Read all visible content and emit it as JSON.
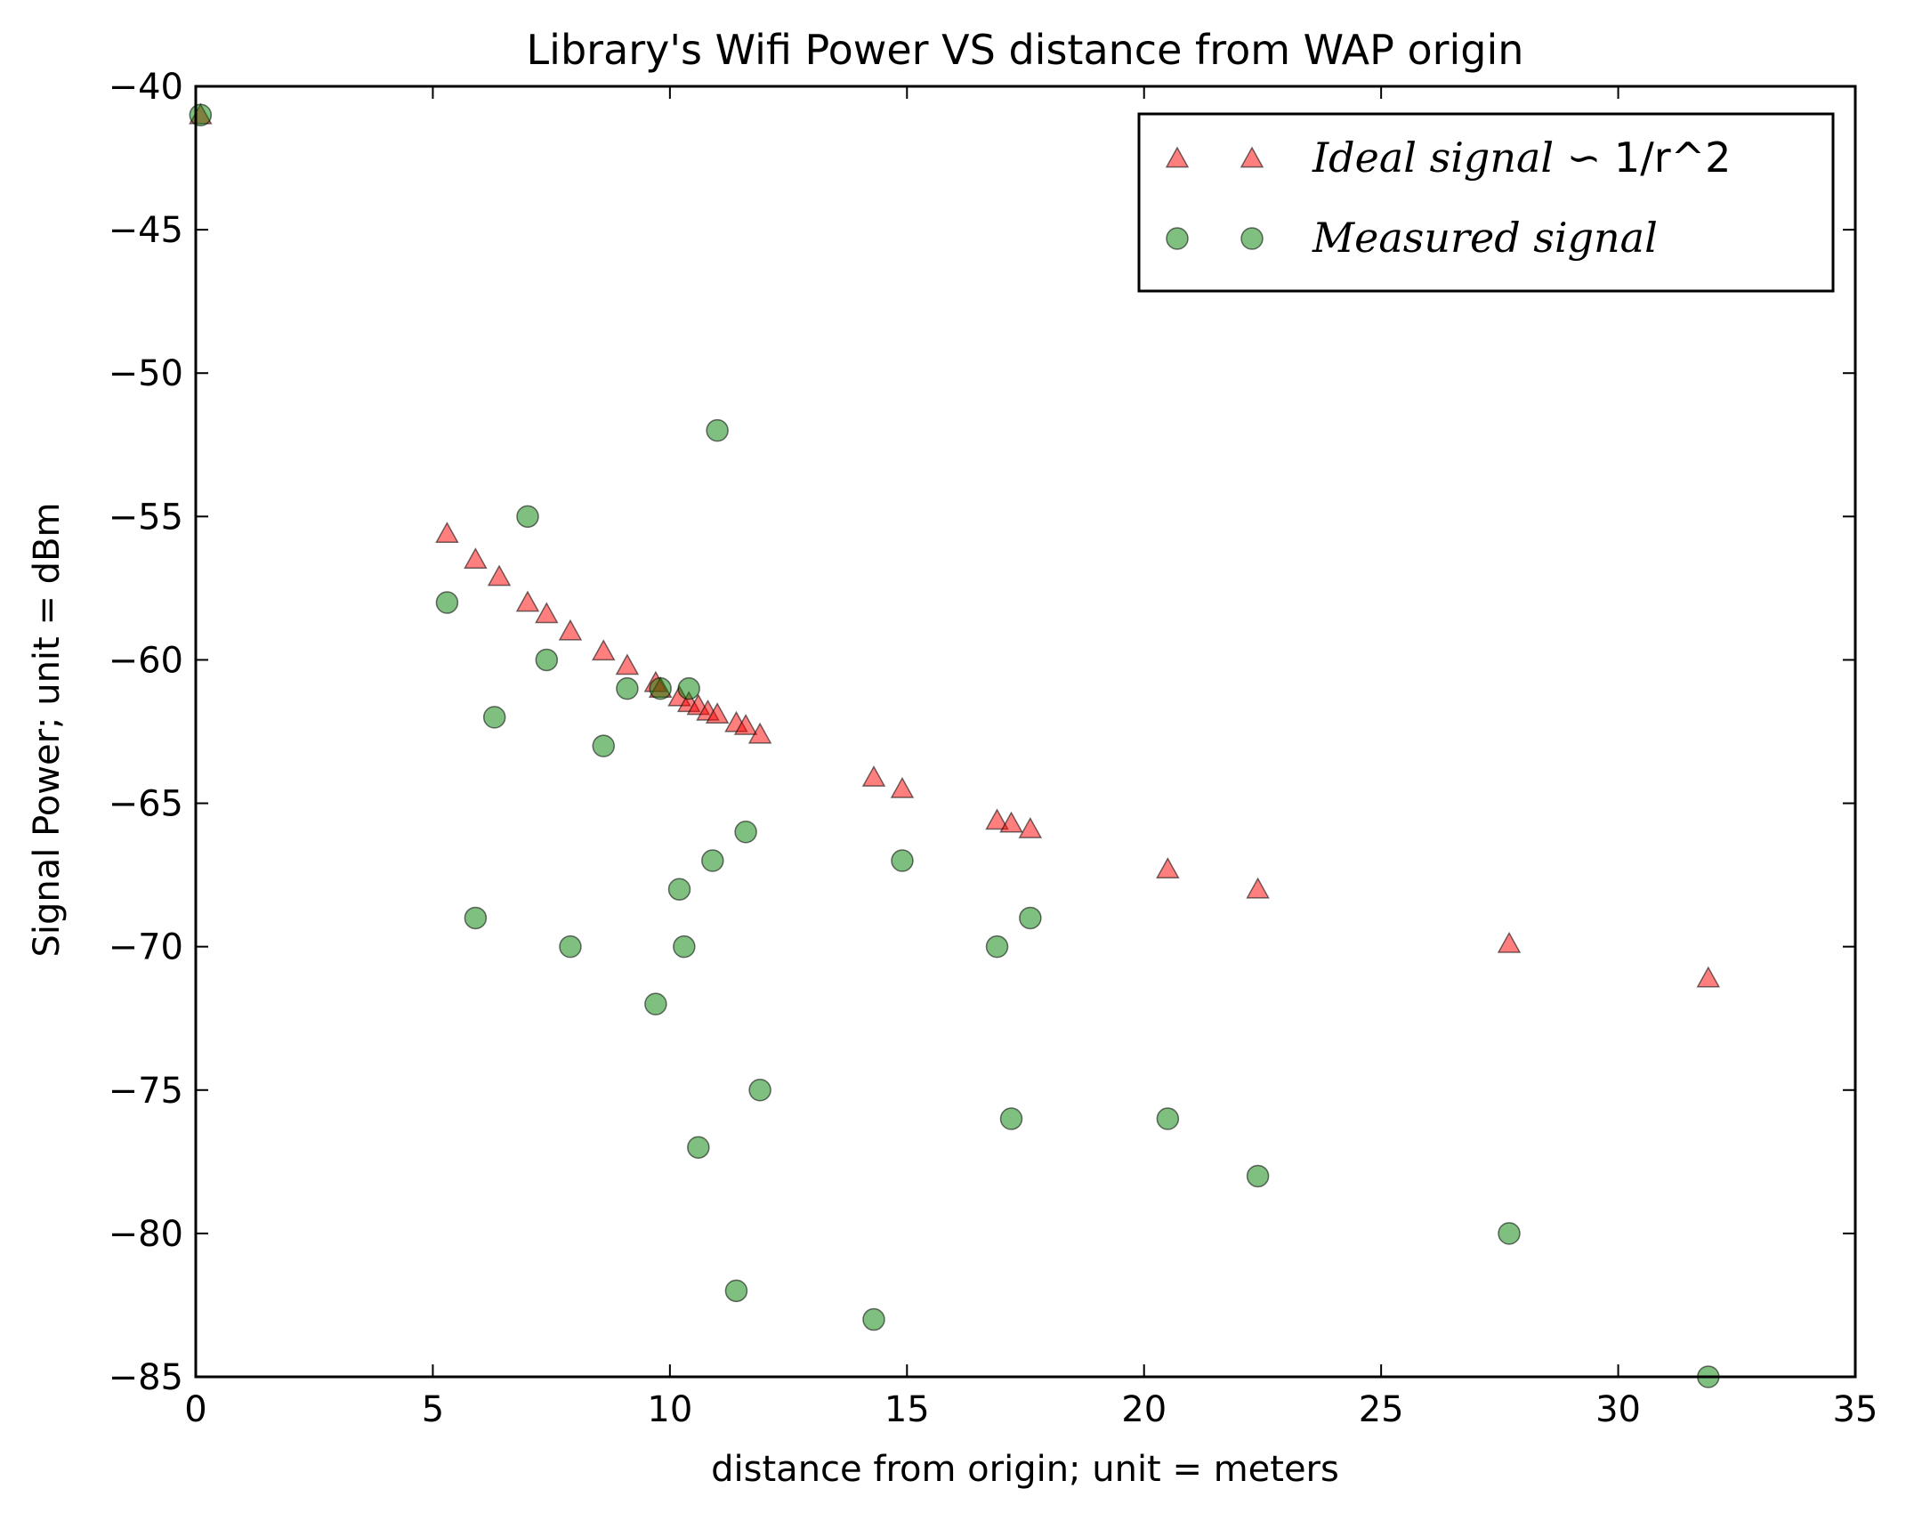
{
  "chart_data": {
    "type": "scatter",
    "title": "Library's Wifi Power VS distance from WAP origin",
    "xlabel": "distance from origin; unit = meters",
    "ylabel": "Signal Power; unit = dBm",
    "xlim": [
      0,
      35
    ],
    "ylim": [
      -85,
      -40
    ],
    "xticks": [
      0,
      5,
      10,
      15,
      20,
      25,
      30,
      35
    ],
    "yticks": [
      -40,
      -45,
      -50,
      -55,
      -60,
      -65,
      -70,
      -75,
      -80,
      -85
    ],
    "grid": false,
    "legend_position": "top-right",
    "series": [
      {
        "name": "Ideal signal ∽ 1/r^2",
        "legend_italic": "Ideal signal",
        "legend_suffix": "∽ 1/r^2",
        "marker": "triangle",
        "color": "#ff0000",
        "points": [
          [
            0.1,
            -41
          ],
          [
            5.3,
            -55.6
          ],
          [
            5.9,
            -56.5
          ],
          [
            6.4,
            -57.1
          ],
          [
            7.0,
            -58.0
          ],
          [
            7.4,
            -58.4
          ],
          [
            7.9,
            -59.0
          ],
          [
            8.6,
            -59.7
          ],
          [
            9.1,
            -60.2
          ],
          [
            9.7,
            -60.8
          ],
          [
            9.8,
            -61.0
          ],
          [
            10.2,
            -61.3
          ],
          [
            10.4,
            -61.5
          ],
          [
            10.6,
            -61.6
          ],
          [
            10.8,
            -61.8
          ],
          [
            11.0,
            -61.9
          ],
          [
            11.4,
            -62.2
          ],
          [
            11.6,
            -62.3
          ],
          [
            11.9,
            -62.6
          ],
          [
            14.3,
            -64.1
          ],
          [
            14.9,
            -64.5
          ],
          [
            16.9,
            -65.6
          ],
          [
            17.2,
            -65.7
          ],
          [
            17.6,
            -65.9
          ],
          [
            20.5,
            -67.3
          ],
          [
            22.4,
            -68.0
          ],
          [
            27.7,
            -69.9
          ],
          [
            31.9,
            -71.1
          ]
        ]
      },
      {
        "name": "Measured signal",
        "legend_italic": "Measured signal",
        "legend_suffix": "",
        "marker": "circle",
        "color": "#008000",
        "points": [
          [
            0.1,
            -41
          ],
          [
            5.3,
            -58
          ],
          [
            5.9,
            -69
          ],
          [
            6.3,
            -62
          ],
          [
            7.0,
            -55
          ],
          [
            7.4,
            -60
          ],
          [
            7.9,
            -70
          ],
          [
            8.6,
            -63
          ],
          [
            9.1,
            -61
          ],
          [
            9.7,
            -72
          ],
          [
            9.8,
            -61
          ],
          [
            10.2,
            -68
          ],
          [
            10.3,
            -70
          ],
          [
            10.4,
            -61
          ],
          [
            10.6,
            -77
          ],
          [
            10.9,
            -67
          ],
          [
            11.0,
            -52
          ],
          [
            11.4,
            -82
          ],
          [
            11.6,
            -66
          ],
          [
            11.9,
            -75
          ],
          [
            14.3,
            -83
          ],
          [
            14.9,
            -67
          ],
          [
            16.9,
            -70
          ],
          [
            17.2,
            -76
          ],
          [
            17.6,
            -69
          ],
          [
            20.5,
            -76
          ],
          [
            22.4,
            -78
          ],
          [
            27.7,
            -80
          ],
          [
            31.9,
            -85
          ]
        ]
      }
    ]
  }
}
